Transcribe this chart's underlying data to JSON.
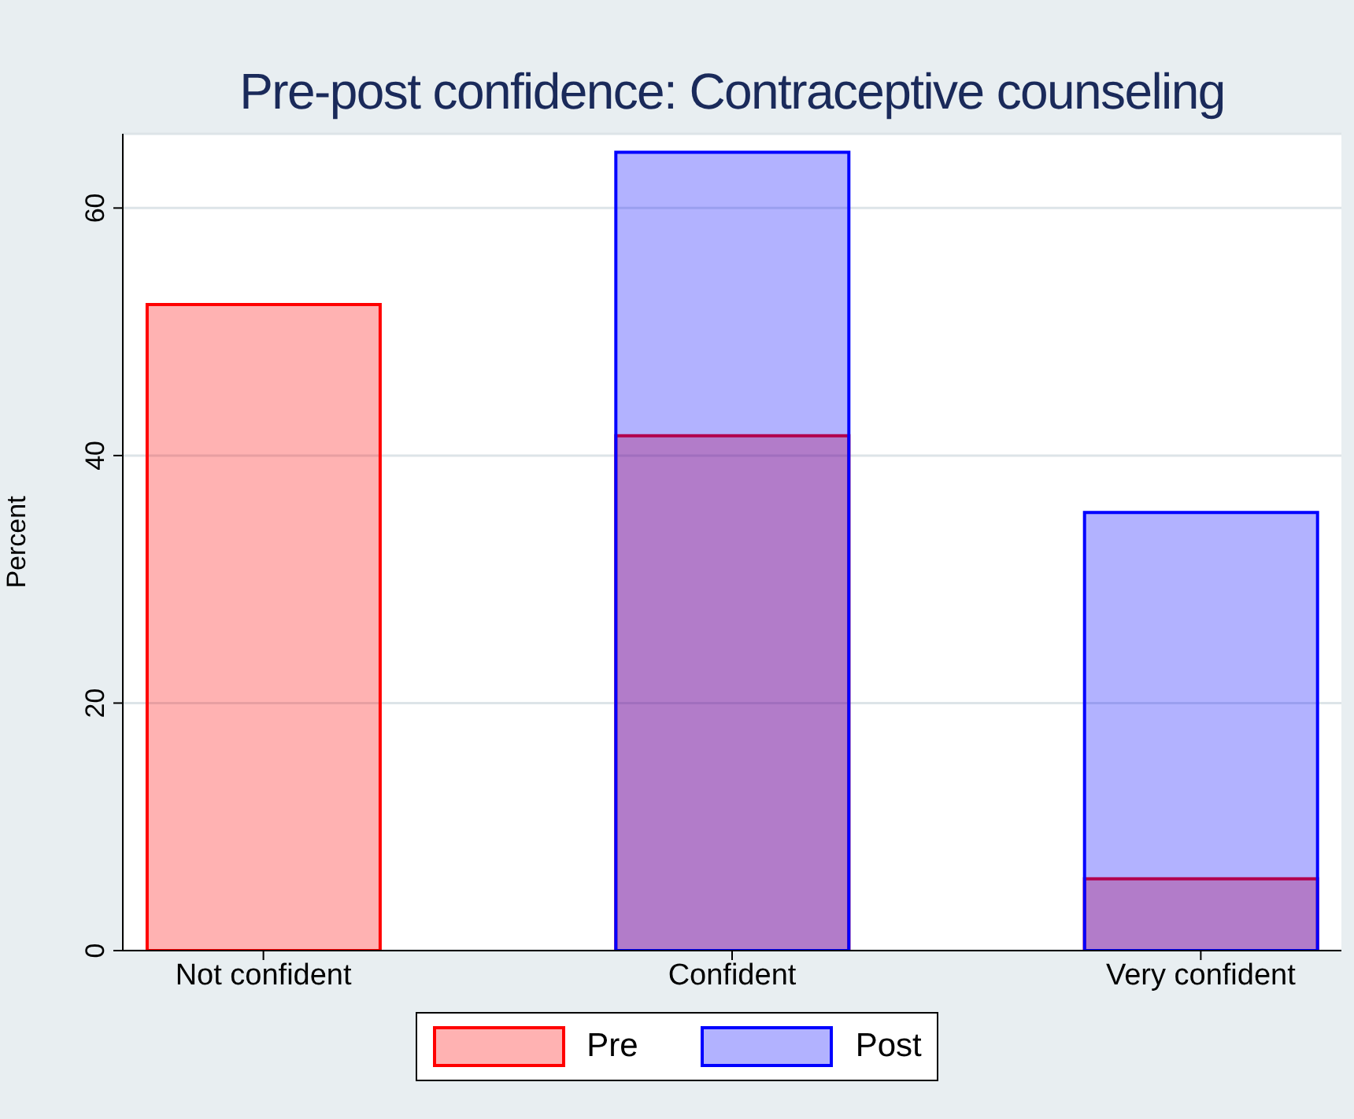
{
  "chart_data": {
    "type": "bar",
    "title": "Pre-post confidence: Contraceptive counseling",
    "ylabel": "Percent",
    "categories": [
      "Not confident",
      "Confident",
      "Very confident"
    ],
    "series": [
      {
        "name": "Pre",
        "color": "#ff0000",
        "values": [
          52.2,
          41.6,
          5.8
        ]
      },
      {
        "name": "Post",
        "color": "#0000ff",
        "values": [
          0,
          64.5,
          35.4
        ]
      }
    ],
    "ylim": [
      0,
      66
    ],
    "yticks": [
      0,
      20,
      40,
      60
    ],
    "grid": "y",
    "legend": "bottom"
  }
}
